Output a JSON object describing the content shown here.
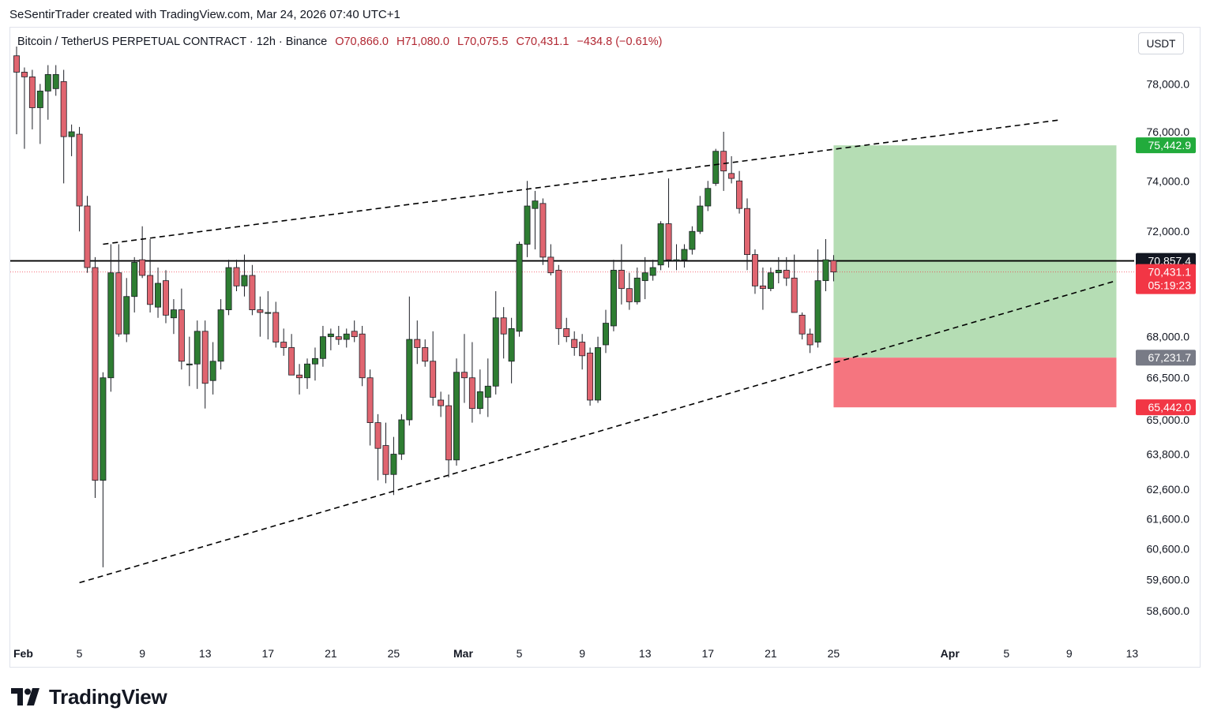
{
  "header": {
    "credit": "SeSentirTrader created with TradingView.com, Mar 24, 2026 07:40 UTC+1"
  },
  "legend": {
    "symbol": "Bitcoin / TetherUS PERPETUAL CONTRACT · 12h · Binance",
    "open": "O70,866.0",
    "high": "H71,080.0",
    "low": "L70,075.5",
    "close": "C70,431.1",
    "change": "−434.8 (−0.61%)"
  },
  "currency_button": "USDT",
  "brand": {
    "name": "TradingView",
    "logo": "tradingview-logo-icon"
  },
  "colors": {
    "up": "#2e7d32",
    "down": "#e06570",
    "target_zone": "#b5ddb4",
    "stop_zone": "#f5757f",
    "tag_green": "#22ab3c",
    "tag_red": "#f23645",
    "tag_gray": "#787b86",
    "tag_black": "#131722"
  },
  "chart_data": {
    "type": "candlestick",
    "symbol": "Bitcoin / TetherUS PERPETUAL CONTRACT",
    "interval": "12h",
    "exchange": "Binance",
    "y_axis": {
      "scale": "log",
      "currency": "USDT",
      "ticks": [
        {
          "value": 78000,
          "label": "78,000.0"
        },
        {
          "value": 76000,
          "label": "76,000.0"
        },
        {
          "value": 74000,
          "label": "74,000.0"
        },
        {
          "value": 72000,
          "label": "72,000.0"
        },
        {
          "value": 68000,
          "label": "68,000.0"
        },
        {
          "value": 66500,
          "label": "66,500.0"
        },
        {
          "value": 65000,
          "label": "65,000.0"
        },
        {
          "value": 63800,
          "label": "63,800.0"
        },
        {
          "value": 62600,
          "label": "62,600.0"
        },
        {
          "value": 61600,
          "label": "61,600.0"
        },
        {
          "value": 60600,
          "label": "60,600.0"
        },
        {
          "value": 59600,
          "label": "59,600.0"
        },
        {
          "value": 58600,
          "label": "58,600.0"
        }
      ]
    },
    "x_axis": {
      "ticks": [
        {
          "date": "2026-02-01",
          "label": "Feb",
          "bold": true
        },
        {
          "date": "2026-02-05",
          "label": "5"
        },
        {
          "date": "2026-02-09",
          "label": "9"
        },
        {
          "date": "2026-02-13",
          "label": "13"
        },
        {
          "date": "2026-02-17",
          "label": "17"
        },
        {
          "date": "2026-02-21",
          "label": "21"
        },
        {
          "date": "2026-02-25",
          "label": "25"
        },
        {
          "date": "2026-03-01",
          "label": "Mar",
          "bold": true
        },
        {
          "date": "2026-03-05",
          "label": "5"
        },
        {
          "date": "2026-03-09",
          "label": "9"
        },
        {
          "date": "2026-03-13",
          "label": "13"
        },
        {
          "date": "2026-03-17",
          "label": "17"
        },
        {
          "date": "2026-03-21",
          "label": "21"
        },
        {
          "date": "2026-03-25",
          "label": "25"
        },
        {
          "date": "2026-04-01",
          "label": "Apr",
          "bold": true
        },
        {
          "date": "2026-04-05",
          "label": "5"
        },
        {
          "date": "2026-04-09",
          "label": "9"
        },
        {
          "date": "2026-04-13",
          "label": "13"
        }
      ]
    },
    "candles": [
      {
        "t": "2026-02-01 00:00",
        "o": 79200,
        "h": 79600,
        "l": 75900,
        "c": 78500
      },
      {
        "t": "2026-02-01 12:00",
        "o": 78500,
        "h": 78700,
        "l": 75300,
        "c": 78300
      },
      {
        "t": "2026-02-02 00:00",
        "o": 78300,
        "h": 78600,
        "l": 76100,
        "c": 77000
      },
      {
        "t": "2026-02-02 12:00",
        "o": 77000,
        "h": 78000,
        "l": 75500,
        "c": 77700
      },
      {
        "t": "2026-02-03 00:00",
        "o": 77700,
        "h": 78800,
        "l": 76500,
        "c": 78400
      },
      {
        "t": "2026-02-03 12:00",
        "o": 77800,
        "h": 78800,
        "l": 77500,
        "c": 78400
      },
      {
        "t": "2026-02-04 00:00",
        "o": 78100,
        "h": 78600,
        "l": 73900,
        "c": 75800
      },
      {
        "t": "2026-02-04 12:00",
        "o": 75800,
        "h": 76300,
        "l": 75000,
        "c": 76000
      },
      {
        "t": "2026-02-05 00:00",
        "o": 75900,
        "h": 76200,
        "l": 72000,
        "c": 73000
      },
      {
        "t": "2026-02-05 12:00",
        "o": 73000,
        "h": 73400,
        "l": 70400,
        "c": 70600
      },
      {
        "t": "2026-02-06 00:00",
        "o": 70600,
        "h": 71000,
        "l": 62300,
        "c": 62900
      },
      {
        "t": "2026-02-06 12:00",
        "o": 62900,
        "h": 66700,
        "l": 60000,
        "c": 66500
      },
      {
        "t": "2026-02-07 00:00",
        "o": 66500,
        "h": 71500,
        "l": 66000,
        "c": 70400
      },
      {
        "t": "2026-02-07 12:00",
        "o": 70400,
        "h": 71500,
        "l": 68000,
        "c": 68100
      },
      {
        "t": "2026-02-08 00:00",
        "o": 68100,
        "h": 70200,
        "l": 67800,
        "c": 69500
      },
      {
        "t": "2026-02-08 12:00",
        "o": 69500,
        "h": 71000,
        "l": 68900,
        "c": 70800
      },
      {
        "t": "2026-02-09 00:00",
        "o": 70900,
        "h": 72200,
        "l": 70200,
        "c": 70300
      },
      {
        "t": "2026-02-09 12:00",
        "o": 70300,
        "h": 71700,
        "l": 68900,
        "c": 69200
      },
      {
        "t": "2026-02-10 00:00",
        "o": 69100,
        "h": 70600,
        "l": 68700,
        "c": 70000
      },
      {
        "t": "2026-02-10 12:00",
        "o": 70100,
        "h": 70500,
        "l": 68500,
        "c": 68800
      },
      {
        "t": "2026-02-11 00:00",
        "o": 68700,
        "h": 69400,
        "l": 68100,
        "c": 69000
      },
      {
        "t": "2026-02-11 12:00",
        "o": 69000,
        "h": 69800,
        "l": 66800,
        "c": 67100
      },
      {
        "t": "2026-02-12 00:00",
        "o": 67000,
        "h": 68000,
        "l": 66200,
        "c": 67000
      },
      {
        "t": "2026-02-12 12:00",
        "o": 67000,
        "h": 68600,
        "l": 66100,
        "c": 68200
      },
      {
        "t": "2026-02-13 00:00",
        "o": 68200,
        "h": 68600,
        "l": 65400,
        "c": 66300
      },
      {
        "t": "2026-02-13 12:00",
        "o": 66400,
        "h": 67800,
        "l": 65900,
        "c": 67100
      },
      {
        "t": "2026-02-14 00:00",
        "o": 67100,
        "h": 69400,
        "l": 66800,
        "c": 69000
      },
      {
        "t": "2026-02-14 12:00",
        "o": 69000,
        "h": 70900,
        "l": 68800,
        "c": 70600
      },
      {
        "t": "2026-02-15 00:00",
        "o": 70600,
        "h": 70900,
        "l": 69700,
        "c": 69900
      },
      {
        "t": "2026-02-15 12:00",
        "o": 69900,
        "h": 71100,
        "l": 69500,
        "c": 70300
      },
      {
        "t": "2026-02-16 00:00",
        "o": 70300,
        "h": 70700,
        "l": 68800,
        "c": 69000
      },
      {
        "t": "2026-02-16 12:00",
        "o": 69000,
        "h": 69500,
        "l": 68000,
        "c": 68900
      },
      {
        "t": "2026-02-17 00:00",
        "o": 68900,
        "h": 69700,
        "l": 67900,
        "c": 68900
      },
      {
        "t": "2026-02-17 12:00",
        "o": 68900,
        "h": 69300,
        "l": 67600,
        "c": 67800
      },
      {
        "t": "2026-02-18 00:00",
        "o": 67800,
        "h": 68300,
        "l": 67300,
        "c": 67600
      },
      {
        "t": "2026-02-18 12:00",
        "o": 67600,
        "h": 68100,
        "l": 66600,
        "c": 66600
      },
      {
        "t": "2026-02-19 00:00",
        "o": 66600,
        "h": 67000,
        "l": 65900,
        "c": 66500
      },
      {
        "t": "2026-02-19 12:00",
        "o": 66500,
        "h": 67200,
        "l": 66100,
        "c": 67000
      },
      {
        "t": "2026-02-20 00:00",
        "o": 67000,
        "h": 67600,
        "l": 66400,
        "c": 67200
      },
      {
        "t": "2026-02-20 12:00",
        "o": 67200,
        "h": 68400,
        "l": 66900,
        "c": 68000
      },
      {
        "t": "2026-02-21 00:00",
        "o": 68000,
        "h": 68300,
        "l": 67500,
        "c": 68100
      },
      {
        "t": "2026-02-21 12:00",
        "o": 68000,
        "h": 68400,
        "l": 67700,
        "c": 67900
      },
      {
        "t": "2026-02-22 00:00",
        "o": 67900,
        "h": 68300,
        "l": 67600,
        "c": 68100
      },
      {
        "t": "2026-02-22 12:00",
        "o": 68200,
        "h": 68600,
        "l": 67800,
        "c": 68000
      },
      {
        "t": "2026-02-23 00:00",
        "o": 68100,
        "h": 68400,
        "l": 66200,
        "c": 66500
      },
      {
        "t": "2026-02-23 12:00",
        "o": 66500,
        "h": 66800,
        "l": 64100,
        "c": 64900
      },
      {
        "t": "2026-02-24 00:00",
        "o": 64900,
        "h": 65200,
        "l": 62900,
        "c": 64000
      },
      {
        "t": "2026-02-24 12:00",
        "o": 64100,
        "h": 64900,
        "l": 62800,
        "c": 63100
      },
      {
        "t": "2026-02-25 00:00",
        "o": 63100,
        "h": 64400,
        "l": 62400,
        "c": 63800
      },
      {
        "t": "2026-02-25 12:00",
        "o": 63800,
        "h": 65200,
        "l": 63600,
        "c": 65000
      },
      {
        "t": "2026-02-26 00:00",
        "o": 65000,
        "h": 69500,
        "l": 64800,
        "c": 67900
      },
      {
        "t": "2026-02-26 12:00",
        "o": 67900,
        "h": 68600,
        "l": 67000,
        "c": 67600
      },
      {
        "t": "2026-02-27 00:00",
        "o": 67600,
        "h": 67900,
        "l": 66900,
        "c": 67100
      },
      {
        "t": "2026-02-27 12:00",
        "o": 67100,
        "h": 68200,
        "l": 65500,
        "c": 65800
      },
      {
        "t": "2026-02-28 00:00",
        "o": 65700,
        "h": 66000,
        "l": 65100,
        "c": 65500
      },
      {
        "t": "2026-02-28 12:00",
        "o": 65500,
        "h": 65900,
        "l": 63000,
        "c": 63600
      },
      {
        "t": "2026-03-01 00:00",
        "o": 63600,
        "h": 67200,
        "l": 63400,
        "c": 66700
      },
      {
        "t": "2026-03-01 12:00",
        "o": 66700,
        "h": 68100,
        "l": 65600,
        "c": 66500
      },
      {
        "t": "2026-03-02 00:00",
        "o": 66500,
        "h": 67800,
        "l": 64900,
        "c": 65400
      },
      {
        "t": "2026-03-02 12:00",
        "o": 65400,
        "h": 66800,
        "l": 65200,
        "c": 66000
      },
      {
        "t": "2026-03-03 00:00",
        "o": 65800,
        "h": 67200,
        "l": 65100,
        "c": 66200
      },
      {
        "t": "2026-03-03 12:00",
        "o": 66200,
        "h": 69700,
        "l": 65900,
        "c": 68700
      },
      {
        "t": "2026-03-04 00:00",
        "o": 68700,
        "h": 69100,
        "l": 67200,
        "c": 68100
      },
      {
        "t": "2026-03-04 12:00",
        "o": 67100,
        "h": 68700,
        "l": 66300,
        "c": 68300
      },
      {
        "t": "2026-03-05 00:00",
        "o": 68200,
        "h": 71600,
        "l": 68000,
        "c": 71500
      },
      {
        "t": "2026-03-05 12:00",
        "o": 71500,
        "h": 74000,
        "l": 71000,
        "c": 73000
      },
      {
        "t": "2026-03-06 00:00",
        "o": 72900,
        "h": 73600,
        "l": 71300,
        "c": 73200
      },
      {
        "t": "2026-03-06 12:00",
        "o": 73100,
        "h": 73300,
        "l": 70700,
        "c": 71000
      },
      {
        "t": "2026-03-07 00:00",
        "o": 71000,
        "h": 71500,
        "l": 70300,
        "c": 70400
      },
      {
        "t": "2026-03-07 12:00",
        "o": 70500,
        "h": 70700,
        "l": 67700,
        "c": 68300
      },
      {
        "t": "2026-03-08 00:00",
        "o": 68300,
        "h": 68700,
        "l": 67800,
        "c": 68000
      },
      {
        "t": "2026-03-08 12:00",
        "o": 67900,
        "h": 68200,
        "l": 67300,
        "c": 67600
      },
      {
        "t": "2026-03-09 00:00",
        "o": 67800,
        "h": 68100,
        "l": 66800,
        "c": 67300
      },
      {
        "t": "2026-03-09 12:00",
        "o": 67400,
        "h": 67600,
        "l": 65500,
        "c": 65700
      },
      {
        "t": "2026-03-10 00:00",
        "o": 65700,
        "h": 68000,
        "l": 65600,
        "c": 67600
      },
      {
        "t": "2026-03-10 12:00",
        "o": 67700,
        "h": 69000,
        "l": 67400,
        "c": 68500
      },
      {
        "t": "2026-03-11 00:00",
        "o": 68400,
        "h": 70900,
        "l": 68200,
        "c": 70500
      },
      {
        "t": "2026-03-11 12:00",
        "o": 70500,
        "h": 71500,
        "l": 69200,
        "c": 69800
      },
      {
        "t": "2026-03-12 00:00",
        "o": 69800,
        "h": 70400,
        "l": 69000,
        "c": 69300
      },
      {
        "t": "2026-03-12 12:00",
        "o": 69300,
        "h": 70600,
        "l": 69200,
        "c": 70200
      },
      {
        "t": "2026-03-13 00:00",
        "o": 70100,
        "h": 71000,
        "l": 69400,
        "c": 70400
      },
      {
        "t": "2026-03-13 12:00",
        "o": 70300,
        "h": 70900,
        "l": 70100,
        "c": 70600
      },
      {
        "t": "2026-03-14 00:00",
        "o": 70700,
        "h": 72400,
        "l": 70500,
        "c": 72300
      },
      {
        "t": "2026-03-14 12:00",
        "o": 72300,
        "h": 74100,
        "l": 70600,
        "c": 70900
      },
      {
        "t": "2026-03-15 00:00",
        "o": 70900,
        "h": 71500,
        "l": 70500,
        "c": 70900
      },
      {
        "t": "2026-03-15 12:00",
        "o": 70900,
        "h": 71500,
        "l": 70600,
        "c": 71300
      },
      {
        "t": "2026-03-16 00:00",
        "o": 71300,
        "h": 72200,
        "l": 71100,
        "c": 72000
      },
      {
        "t": "2026-03-16 12:00",
        "o": 72000,
        "h": 73400,
        "l": 71900,
        "c": 73000
      },
      {
        "t": "2026-03-17 00:00",
        "o": 73000,
        "h": 74000,
        "l": 72800,
        "c": 73700
      },
      {
        "t": "2026-03-17 12:00",
        "o": 73900,
        "h": 75300,
        "l": 73800,
        "c": 75200
      },
      {
        "t": "2026-03-18 00:00",
        "o": 75200,
        "h": 76000,
        "l": 73600,
        "c": 74400
      },
      {
        "t": "2026-03-18 12:00",
        "o": 74300,
        "h": 75000,
        "l": 73900,
        "c": 74100
      },
      {
        "t": "2026-03-19 00:00",
        "o": 74000,
        "h": 74400,
        "l": 72700,
        "c": 72900
      },
      {
        "t": "2026-03-19 12:00",
        "o": 72900,
        "h": 73300,
        "l": 70500,
        "c": 71100
      },
      {
        "t": "2026-03-20 00:00",
        "o": 71100,
        "h": 71300,
        "l": 69600,
        "c": 69900
      },
      {
        "t": "2026-03-20 12:00",
        "o": 69900,
        "h": 70600,
        "l": 69000,
        "c": 69800
      },
      {
        "t": "2026-03-21 00:00",
        "o": 69800,
        "h": 70600,
        "l": 69700,
        "c": 70400
      },
      {
        "t": "2026-03-21 12:00",
        "o": 70400,
        "h": 71000,
        "l": 70000,
        "c": 70500
      },
      {
        "t": "2026-03-22 00:00",
        "o": 70500,
        "h": 71000,
        "l": 69900,
        "c": 70200
      },
      {
        "t": "2026-03-22 12:00",
        "o": 70200,
        "h": 71100,
        "l": 68900,
        "c": 68900
      },
      {
        "t": "2026-03-23 00:00",
        "o": 68800,
        "h": 68900,
        "l": 67900,
        "c": 68100
      },
      {
        "t": "2026-03-23 12:00",
        "o": 68100,
        "h": 68300,
        "l": 67400,
        "c": 67700
      },
      {
        "t": "2026-03-24 00:00",
        "o": 67800,
        "h": 71300,
        "l": 67600,
        "c": 70100
      },
      {
        "t": "2026-03-24 12:00",
        "o": 70100,
        "h": 71700,
        "l": 69700,
        "c": 70900
      },
      {
        "t": "2026-03-25 00:00",
        "o": 70866,
        "h": 71080,
        "l": 70075.5,
        "c": 70431.1
      }
    ],
    "trendlines": [
      {
        "name": "channel-upper",
        "style": "dashed",
        "from": {
          "t": "2026-02-06 12:00",
          "y": 71500
        },
        "to": {
          "t": "2026-04-08 12:00",
          "y": 76500
        }
      },
      {
        "name": "channel-lower",
        "style": "dashed",
        "from": {
          "t": "2026-02-05 00:00",
          "y": 59500
        },
        "to": {
          "t": "2026-04-12 00:00",
          "y": 70100
        }
      }
    ],
    "horizontal_line": {
      "value": 70857.4,
      "label": "70,857.4"
    },
    "last_price": {
      "value": 70431.1,
      "label": "70,431.1",
      "countdown": "05:19:23"
    },
    "position": {
      "type": "long",
      "start": "2026-03-25 00:00",
      "end": "2026-04-12 00:00",
      "target": {
        "value": 75442.9,
        "label": "75,442.9"
      },
      "entry": {
        "value": 67231.7,
        "label": "67,231.7"
      },
      "stop": {
        "value": 65442.0,
        "label": "65,442.0"
      }
    }
  }
}
